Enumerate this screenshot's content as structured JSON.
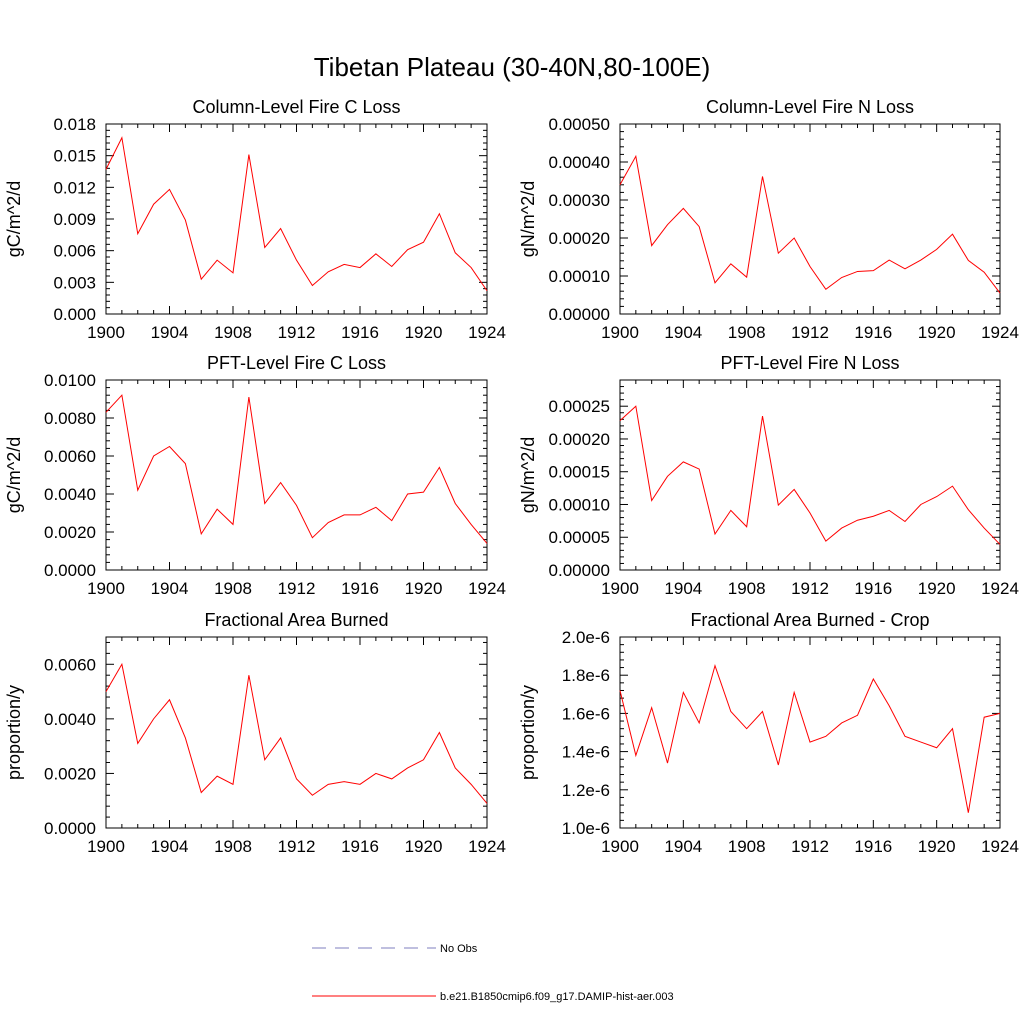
{
  "page": {
    "title": "Tibetan Plateau (30-40N,80-100E)"
  },
  "legend": {
    "obs_label": "No Obs",
    "obs_color": "#7f7fbf",
    "model_label": "b.e21.B1850cmip6.f09_g17.DAMIP-hist-aer.003",
    "model_color": "#ff0000"
  },
  "chart_data": [
    {
      "type": "line",
      "title": "Column-Level Fire C Loss",
      "ylabel": "gC/m^2/d",
      "xlabel": "",
      "xlim": [
        1900,
        1924
      ],
      "ylim": [
        0,
        0.018
      ],
      "xticks": [
        "1900",
        "1904",
        "1908",
        "1912",
        "1916",
        "1920",
        "1924"
      ],
      "yticks": [
        "0.000",
        "0.003",
        "0.006",
        "0.009",
        "0.012",
        "0.015",
        "0.018"
      ],
      "grid": false,
      "series": [
        {
          "color": "#ff0000",
          "x": [
            1900,
            1901,
            1902,
            1903,
            1904,
            1905,
            1906,
            1907,
            1908,
            1909,
            1910,
            1911,
            1912,
            1913,
            1914,
            1915,
            1916,
            1917,
            1918,
            1919,
            1920,
            1921,
            1922,
            1923,
            1924
          ],
          "values": [
            0.0137,
            0.0167,
            0.0076,
            0.0104,
            0.0118,
            0.0089,
            0.0033,
            0.0051,
            0.0039,
            0.0151,
            0.0063,
            0.0081,
            0.0051,
            0.0027,
            0.004,
            0.0047,
            0.0044,
            0.0057,
            0.0045,
            0.0061,
            0.0068,
            0.0095,
            0.0058,
            0.0044,
            0.0022
          ]
        }
      ]
    },
    {
      "type": "line",
      "title": "Column-Level Fire N Loss",
      "ylabel": "gN/m^2/d",
      "xlabel": "",
      "xlim": [
        1900,
        1924
      ],
      "ylim": [
        0,
        0.0005
      ],
      "xticks": [
        "1900",
        "1904",
        "1908",
        "1912",
        "1916",
        "1920",
        "1924"
      ],
      "yticks": [
        "0.00000",
        "0.00010",
        "0.00020",
        "0.00030",
        "0.00040",
        "0.00050"
      ],
      "grid": false,
      "series": [
        {
          "color": "#ff0000",
          "x": [
            1900,
            1901,
            1902,
            1903,
            1904,
            1905,
            1906,
            1907,
            1908,
            1909,
            1910,
            1911,
            1912,
            1913,
            1914,
            1915,
            1916,
            1917,
            1918,
            1919,
            1920,
            1921,
            1922,
            1923,
            1924
          ],
          "values": [
            0.00034,
            0.000415,
            0.00018,
            0.000235,
            0.000278,
            0.00023,
            8.2e-05,
            0.000132,
            9.7e-05,
            0.000362,
            0.00016,
            0.0002,
            0.000125,
            6.5e-05,
            9.6e-05,
            0.000112,
            0.000114,
            0.000142,
            0.000119,
            0.000142,
            0.00017,
            0.00021,
            0.000141,
            0.00011,
            5.5e-05
          ]
        }
      ]
    },
    {
      "type": "line",
      "title": "PFT-Level Fire C Loss",
      "ylabel": "gC/m^2/d",
      "xlabel": "",
      "xlim": [
        1900,
        1924
      ],
      "ylim": [
        0,
        0.01
      ],
      "xticks": [
        "1900",
        "1904",
        "1908",
        "1912",
        "1916",
        "1920",
        "1924"
      ],
      "yticks": [
        "0.0000",
        "0.0020",
        "0.0040",
        "0.0060",
        "0.0080",
        "0.0100"
      ],
      "grid": false,
      "series": [
        {
          "color": "#ff0000",
          "x": [
            1900,
            1901,
            1902,
            1903,
            1904,
            1905,
            1906,
            1907,
            1908,
            1909,
            1910,
            1911,
            1912,
            1913,
            1914,
            1915,
            1916,
            1917,
            1918,
            1919,
            1920,
            1921,
            1922,
            1923,
            1924
          ],
          "values": [
            0.0083,
            0.0092,
            0.0042,
            0.006,
            0.0065,
            0.0056,
            0.0019,
            0.0032,
            0.0024,
            0.0091,
            0.0035,
            0.0046,
            0.0034,
            0.0017,
            0.0025,
            0.0029,
            0.0029,
            0.0033,
            0.0026,
            0.004,
            0.0041,
            0.0054,
            0.0035,
            0.0024,
            0.0014
          ]
        }
      ]
    },
    {
      "type": "line",
      "title": "PFT-Level Fire N Loss",
      "ylabel": "gN/m^2/d",
      "xlabel": "",
      "xlim": [
        1900,
        1924
      ],
      "ylim": [
        0,
        0.00029
      ],
      "xticks": [
        "1900",
        "1904",
        "1908",
        "1912",
        "1916",
        "1920",
        "1924"
      ],
      "yticks": [
        "0.00000",
        "0.00005",
        "0.00010",
        "0.00015",
        "0.00020",
        "0.00025"
      ],
      "grid": false,
      "series": [
        {
          "color": "#ff0000",
          "x": [
            1900,
            1901,
            1902,
            1903,
            1904,
            1905,
            1906,
            1907,
            1908,
            1909,
            1910,
            1911,
            1912,
            1913,
            1914,
            1915,
            1916,
            1917,
            1918,
            1919,
            1920,
            1921,
            1922,
            1923,
            1924
          ],
          "values": [
            0.000228,
            0.00025,
            0.000106,
            0.000143,
            0.000165,
            0.000154,
            5.5e-05,
            9.1e-05,
            6.6e-05,
            0.000235,
            9.9e-05,
            0.000123,
            8.7e-05,
            4.4e-05,
            6.4e-05,
            7.6e-05,
            8.2e-05,
            9.1e-05,
            7.4e-05,
            0.0001,
            0.000112,
            0.000128,
            9.2e-05,
            6.4e-05,
            3.9e-05
          ]
        }
      ]
    },
    {
      "type": "line",
      "title": "Fractional Area Burned",
      "ylabel": "proportion/y",
      "xlabel": "",
      "xlim": [
        1900,
        1924
      ],
      "ylim": [
        0,
        0.007
      ],
      "xticks": [
        "1900",
        "1904",
        "1908",
        "1912",
        "1916",
        "1920",
        "1924"
      ],
      "yticks": [
        "0.0000",
        "0.0020",
        "0.0040",
        "0.0060"
      ],
      "grid": false,
      "series": [
        {
          "color": "#ff0000",
          "x": [
            1900,
            1901,
            1902,
            1903,
            1904,
            1905,
            1906,
            1907,
            1908,
            1909,
            1910,
            1911,
            1912,
            1913,
            1914,
            1915,
            1916,
            1917,
            1918,
            1919,
            1920,
            1921,
            1922,
            1923,
            1924
          ],
          "values": [
            0.005,
            0.006,
            0.0031,
            0.004,
            0.0047,
            0.0033,
            0.0013,
            0.0019,
            0.0016,
            0.0056,
            0.0025,
            0.0033,
            0.0018,
            0.0012,
            0.0016,
            0.0017,
            0.0016,
            0.002,
            0.0018,
            0.0022,
            0.0025,
            0.0035,
            0.0022,
            0.0016,
            0.0009
          ]
        }
      ]
    },
    {
      "type": "line",
      "title": "Fractional Area Burned - Crop",
      "ylabel": "proportion/y",
      "xlabel": "",
      "xlim": [
        1900,
        1924
      ],
      "ylim": [
        1e-06,
        2e-06
      ],
      "xticks": [
        "1900",
        "1904",
        "1908",
        "1912",
        "1916",
        "1920",
        "1924"
      ],
      "yticks": [
        "1.0e-6",
        "1.2e-6",
        "1.4e-6",
        "1.6e-6",
        "1.8e-6",
        "2.0e-6"
      ],
      "grid": false,
      "series": [
        {
          "color": "#ff0000",
          "x": [
            1900,
            1901,
            1902,
            1903,
            1904,
            1905,
            1906,
            1907,
            1908,
            1909,
            1910,
            1911,
            1912,
            1913,
            1914,
            1915,
            1916,
            1917,
            1918,
            1919,
            1920,
            1921,
            1922,
            1923,
            1924
          ],
          "values": [
            1.72e-06,
            1.38e-06,
            1.63e-06,
            1.34e-06,
            1.71e-06,
            1.55e-06,
            1.85e-06,
            1.61e-06,
            1.52e-06,
            1.61e-06,
            1.33e-06,
            1.71e-06,
            1.45e-06,
            1.48e-06,
            1.55e-06,
            1.59e-06,
            1.78e-06,
            1.64e-06,
            1.48e-06,
            1.45e-06,
            1.42e-06,
            1.52e-06,
            1.08e-06,
            1.58e-06,
            1.6e-06
          ]
        }
      ]
    }
  ]
}
